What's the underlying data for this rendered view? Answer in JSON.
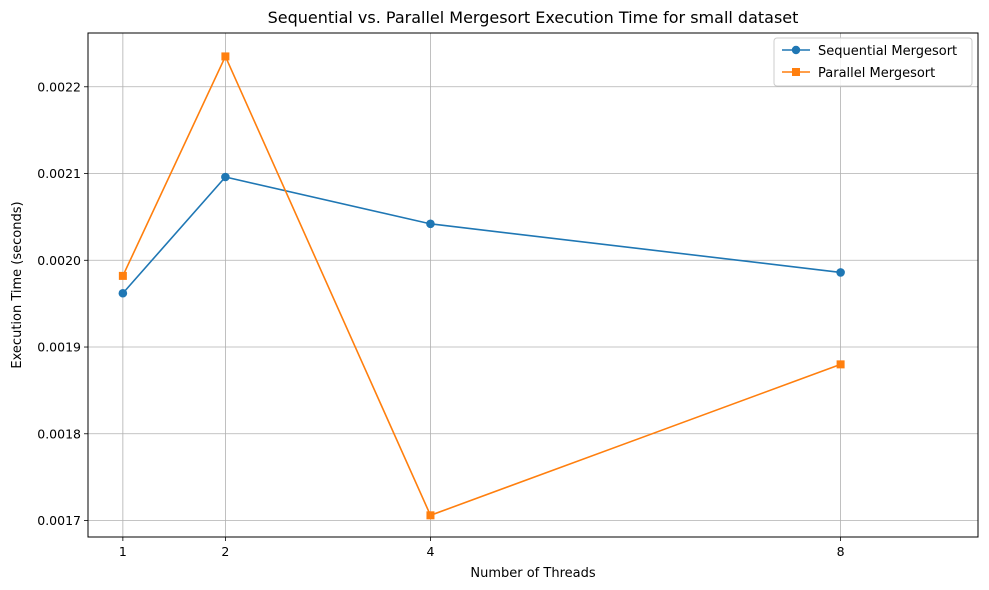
{
  "chart_data": {
    "type": "line",
    "title": "Sequential vs. Parallel Mergesort Execution Time for small dataset",
    "xlabel": "Number of Threads",
    "ylabel": "Execution Time (seconds)",
    "x": [
      1,
      2,
      4,
      8
    ],
    "x_ticks": [
      "1",
      "2",
      "4",
      "8"
    ],
    "y_ticks": [
      "0.0017",
      "0.0018",
      "0.0019",
      "0.0020",
      "0.0021",
      "0.0022"
    ],
    "y_tick_values": [
      0.0017,
      0.0018,
      0.0019,
      0.002,
      0.0021,
      0.0022
    ],
    "xlim": [
      0.66,
      9.34
    ],
    "ylim": [
      0.001681,
      0.002262
    ],
    "grid": true,
    "legend_position": "top-right",
    "series": [
      {
        "name": "Sequential Mergesort",
        "values": [
          0.001962,
          0.002096,
          0.002042,
          0.001986
        ],
        "color": "#1f77b4",
        "marker": "circle"
      },
      {
        "name": "Parallel Mergesort",
        "values": [
          0.001982,
          0.002235,
          0.001706,
          0.00188
        ],
        "color": "#ff7f0e",
        "marker": "square"
      }
    ]
  }
}
